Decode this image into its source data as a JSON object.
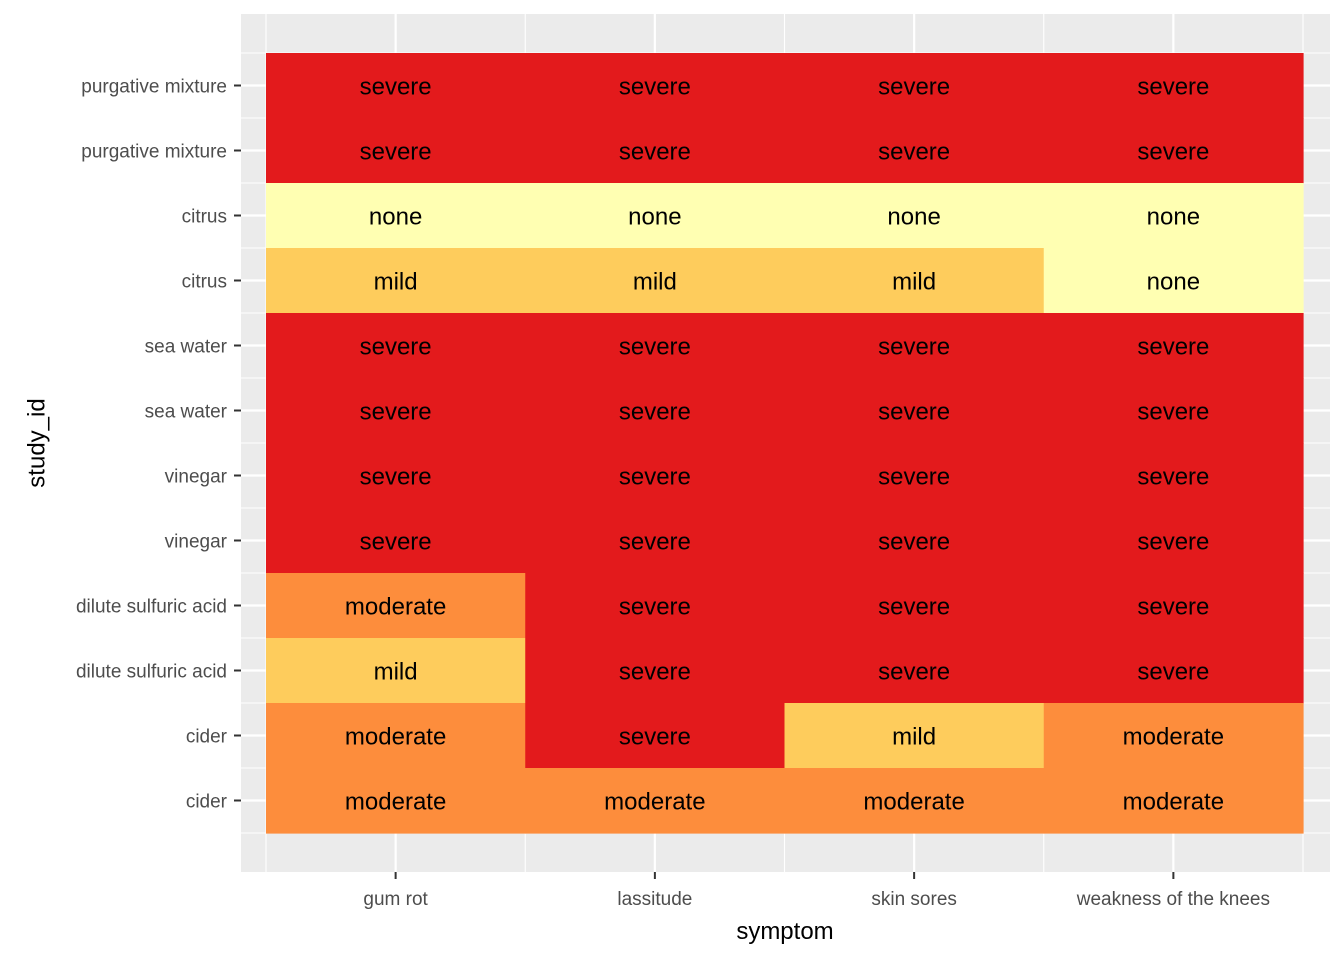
{
  "chart_data": {
    "type": "heatmap",
    "xlabel": "symptom",
    "ylabel": "study_id",
    "x_categories": [
      "gum rot",
      "lassitude",
      "skin sores",
      "weakness of the knees"
    ],
    "y_categories": [
      "purgative mixture",
      "purgative mixture",
      "citrus",
      "citrus",
      "sea water",
      "sea water",
      "vinegar",
      "vinegar",
      "dilute sulfuric acid",
      "dilute sulfuric acid",
      "cider",
      "cider"
    ],
    "values": [
      [
        "severe",
        "severe",
        "severe",
        "severe"
      ],
      [
        "severe",
        "severe",
        "severe",
        "severe"
      ],
      [
        "none",
        "none",
        "none",
        "none"
      ],
      [
        "mild",
        "mild",
        "mild",
        "none"
      ],
      [
        "severe",
        "severe",
        "severe",
        "severe"
      ],
      [
        "severe",
        "severe",
        "severe",
        "severe"
      ],
      [
        "severe",
        "severe",
        "severe",
        "severe"
      ],
      [
        "severe",
        "severe",
        "severe",
        "severe"
      ],
      [
        "moderate",
        "severe",
        "severe",
        "severe"
      ],
      [
        "mild",
        "severe",
        "severe",
        "severe"
      ],
      [
        "moderate",
        "severe",
        "mild",
        "moderate"
      ],
      [
        "moderate",
        "moderate",
        "moderate",
        "moderate"
      ]
    ],
    "level_colors": {
      "none": "#FFFFB2",
      "mild": "#FECC5C",
      "moderate": "#FD8D3C",
      "severe": "#E31A1C"
    },
    "panel_background": "#EBEBEB",
    "grid": true,
    "legend": "none"
  }
}
